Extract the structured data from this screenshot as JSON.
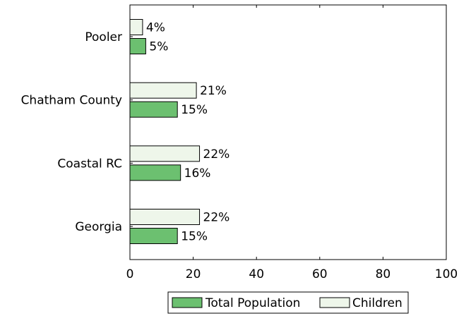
{
  "chart_data": {
    "type": "bar",
    "orientation": "horizontal",
    "categories": [
      "Pooler",
      "Chatham County",
      "Coastal RC",
      "Georgia"
    ],
    "series": [
      {
        "name": "Total Population",
        "values": [
          5,
          15,
          16,
          15
        ],
        "labels": [
          "5%",
          "15%",
          "16%",
          "15%"
        ],
        "color": "#6cc070"
      },
      {
        "name": "Children",
        "values": [
          4,
          21,
          22,
          22
        ],
        "labels": [
          "4%",
          "21%",
          "22%",
          "22%"
        ],
        "color": "#eef6ea"
      }
    ],
    "xlim": [
      0,
      100
    ],
    "xticks": [
      "0",
      "20",
      "40",
      "60",
      "80",
      "100"
    ],
    "xlabel": "",
    "ylabel": "",
    "title": "",
    "grid": false,
    "legend_position": "bottom"
  }
}
